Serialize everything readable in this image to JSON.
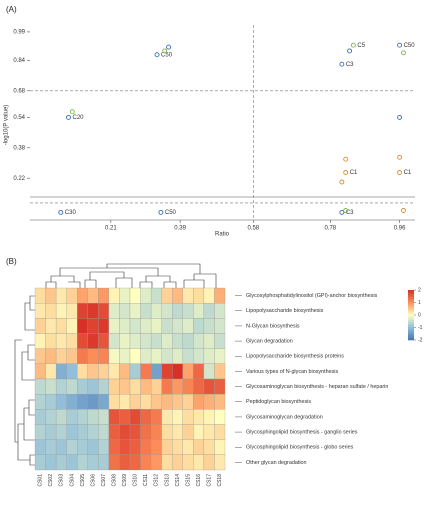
{
  "panel_a": {
    "label": "(A)",
    "type": "scatter",
    "xlabel": "Ratio",
    "ylabel": "-log10(P value)",
    "xlim": [
      0,
      1
    ],
    "ylim": [
      0,
      1
    ],
    "xticks": [
      0.21,
      0.39,
      0.58,
      0.78,
      0.96
    ],
    "yticks": [
      0.22,
      0.38,
      0.54,
      0.68,
      0.84,
      0.99
    ],
    "vlines": [
      0.58
    ],
    "hlines": [
      0.68,
      0.09
    ],
    "series": [
      {
        "color": "#3b6fb6",
        "x": [
          0.33,
          0.36,
          0.81,
          0.83,
          0.96,
          0.1,
          0.96,
          0.08,
          0.34,
          0.81
        ],
        "y": [
          0.87,
          0.91,
          0.82,
          0.89,
          0.92,
          0.54,
          0.54,
          0.04,
          0.04,
          0.04
        ],
        "point_labels": [
          "C50",
          null,
          "C3",
          null,
          "C50",
          "C20",
          null,
          "C30",
          "C50",
          "C3"
        ]
      },
      {
        "color": "#7ab648",
        "x": [
          0.35,
          0.84,
          0.97,
          0.11,
          0.82
        ],
        "y": [
          0.89,
          0.92,
          0.88,
          0.57,
          0.05
        ],
        "point_labels": [
          null,
          "C5",
          null,
          null,
          null
        ]
      },
      {
        "color": "#e08a2c",
        "x": [
          0.82,
          0.82,
          0.81,
          0.96,
          0.96,
          0.97
        ],
        "y": [
          0.32,
          0.25,
          0.2,
          0.33,
          0.25,
          0.05
        ],
        "point_labels": [
          null,
          "C1",
          null,
          null,
          "C1",
          null
        ]
      }
    ]
  },
  "panel_b": {
    "label": "(B)",
    "type": "heatmap",
    "columns": [
      "CS01",
      "CS02",
      "CS03",
      "CS04",
      "CS05",
      "CS06",
      "CS07",
      "CS08",
      "CS09",
      "CS10",
      "CS11",
      "CS12",
      "CS13",
      "CS14",
      "CS15",
      "CS16",
      "CS17",
      "CS18"
    ],
    "rows": [
      "Glycosylphosphatidylinositol (GPI)-anchor biosynthesis",
      "Lipopolysaccharide biosynthesis",
      "N-Glycan biosynthesis",
      "Glycan degradation",
      "Lipopolysaccharide biosynthesis proteins",
      "Various types of N-glycan biosynthesis",
      "Glycosaminoglycan biosynthesis - heparan sulfate / heparin",
      "Peptidoglycan biosynthesis",
      "Glycosaminoglycan degradation",
      "Glycosphingolipid biosynthesis - ganglio series",
      "Glycosphingolipid biosynthesis - globo series",
      "Other glycan degradation"
    ],
    "values": [
      [
        0.3,
        0.5,
        0.2,
        0.4,
        0.8,
        0.6,
        0.9,
        0.1,
        -0.2,
        0.0,
        -0.3,
        -0.5,
        0.4,
        0.6,
        0.2,
        0.3,
        0.1,
        0.7
      ],
      [
        0.2,
        0.3,
        0.1,
        0.2,
        1.8,
        1.9,
        1.7,
        -0.3,
        -0.4,
        -0.2,
        -0.5,
        -0.3,
        -0.4,
        -0.6,
        -0.5,
        -0.3,
        -0.6,
        -0.4
      ],
      [
        0.4,
        0.2,
        0.3,
        0.1,
        2.0,
        1.8,
        1.9,
        -0.2,
        -0.3,
        -0.4,
        -0.3,
        -0.2,
        -0.5,
        -0.4,
        -0.3,
        -0.6,
        -0.5,
        -0.4
      ],
      [
        0.1,
        0.3,
        0.2,
        0.3,
        1.7,
        1.9,
        1.6,
        -0.4,
        -0.2,
        -0.3,
        -0.4,
        -0.5,
        -0.3,
        -0.5,
        -0.6,
        -0.4,
        -0.3,
        -0.5
      ],
      [
        0.5,
        0.6,
        0.4,
        0.5,
        1.2,
        1.0,
        1.1,
        -0.1,
        -0.2,
        0.0,
        -0.3,
        -0.2,
        -0.4,
        -0.3,
        -0.5,
        -0.4,
        -0.3,
        -0.2
      ],
      [
        0.6,
        0.2,
        -1.2,
        -1.0,
        0.3,
        0.5,
        0.4,
        0.2,
        0.6,
        -0.8,
        1.2,
        -1.4,
        1.8,
        2.0,
        0.8,
        1.4,
        -0.4,
        0.5
      ],
      [
        -0.6,
        -0.5,
        -0.7,
        -0.6,
        -0.8,
        -0.9,
        -0.7,
        0.4,
        0.5,
        0.3,
        0.6,
        0.4,
        1.2,
        0.9,
        1.1,
        1.4,
        1.6,
        1.5
      ],
      [
        -0.7,
        -0.8,
        -1.0,
        -1.2,
        -1.4,
        -1.5,
        -1.3,
        0.3,
        0.2,
        0.4,
        0.3,
        0.5,
        0.6,
        0.5,
        0.4,
        0.8,
        0.7,
        0.6
      ],
      [
        -0.8,
        -0.7,
        -0.6,
        -0.8,
        -0.7,
        -0.6,
        -0.5,
        1.6,
        1.5,
        1.7,
        1.4,
        1.2,
        0.2,
        0.1,
        0.3,
        0.2,
        0.1,
        0.0
      ],
      [
        -0.7,
        -0.8,
        -0.7,
        -0.9,
        -0.8,
        -0.7,
        -0.6,
        1.5,
        1.7,
        1.6,
        1.3,
        1.1,
        0.3,
        0.2,
        0.4,
        0.1,
        0.2,
        0.3
      ],
      [
        -0.9,
        -0.8,
        -0.9,
        -0.7,
        -0.8,
        -0.9,
        -0.7,
        1.4,
        1.6,
        1.5,
        1.2,
        1.0,
        0.4,
        0.3,
        0.2,
        0.4,
        0.3,
        0.1
      ],
      [
        -0.8,
        -0.9,
        -0.8,
        -0.9,
        -0.7,
        -0.8,
        -0.8,
        1.3,
        1.5,
        1.4,
        1.1,
        0.9,
        0.3,
        0.4,
        0.3,
        0.2,
        0.4,
        0.2
      ]
    ],
    "color_range": [
      -2,
      2
    ],
    "colorbar_ticks": [
      2,
      1,
      0,
      -1,
      -2
    ]
  }
}
